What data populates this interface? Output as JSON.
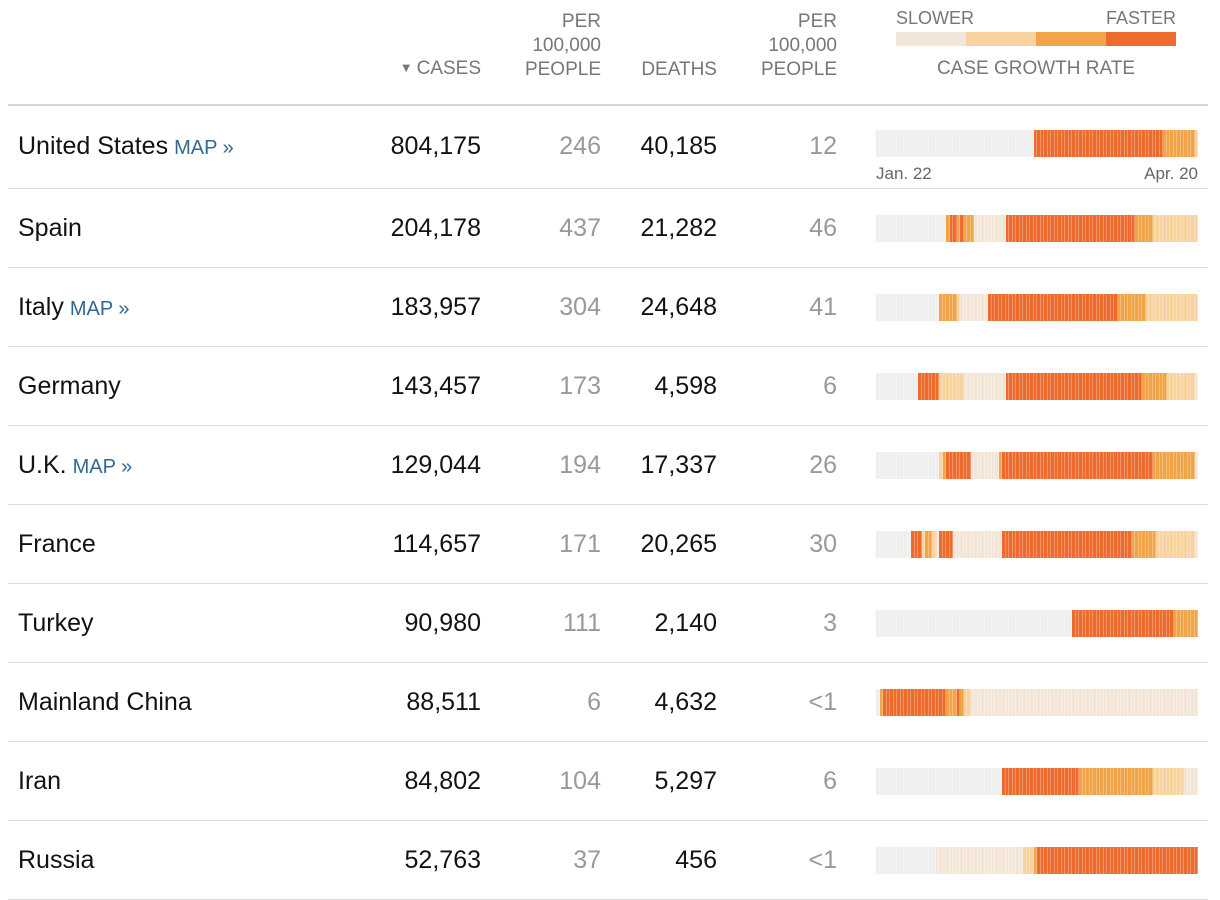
{
  "header": {
    "cases_sort_icon": "triangle-down-icon",
    "cases_sort_glyph": "▼",
    "cases_label": "CASES",
    "per100k_cases": [
      "PER",
      "100,000",
      "PEOPLE"
    ],
    "deaths_label": "DEATHS",
    "per100k_deaths": [
      "PER",
      "100,000",
      "PEOPLE"
    ]
  },
  "legend": {
    "slower_label": "SLOWER",
    "faster_label": "FASTER",
    "caption": "CASE GROWTH RATE",
    "colors": [
      "#f3e6d8",
      "#f8d3a0",
      "#f2a449",
      "#ec6b2d"
    ]
  },
  "colors": {
    "none": "#efefef",
    "level1": "#f3e6d8",
    "level2": "#f8d3a0",
    "level3": "#f2a449",
    "level4": "#ec6b2d",
    "link": "#326891",
    "muted": "#999999"
  },
  "sparkline_dates": {
    "start": "Jan. 22",
    "end": "Apr. 20"
  },
  "rows": [
    {
      "country": "United States",
      "map_link": "MAP »",
      "cases": "804,175",
      "cases_per_100k": "246",
      "deaths": "40,185",
      "deaths_per_100k": "12",
      "growth": "00000000000000000000000000000000000000000000044444444444444444444444444444444444443333333332"
    },
    {
      "country": "Spain",
      "map_link": "",
      "cases": "204,178",
      "cases_per_100k": "437",
      "deaths": "21,282",
      "deaths_per_100k": "46",
      "growth": "00000000000000000000344343331111111114444444444444444444444444444444444444333332222222222222"
    },
    {
      "country": "Italy",
      "map_link": "MAP »",
      "cases": "183,957",
      "cases_per_100k": "304",
      "deaths": "24,648",
      "deaths_per_100k": "41",
      "growth": "00000000000000000033333211111111444444444444444444444444444444444444433333333222222222222222"
    },
    {
      "country": "Germany",
      "map_link": "",
      "cases": "143,457",
      "cases_per_100k": "173",
      "deaths": "4,598",
      "deaths_per_100k": "6",
      "growth": "00000000000044444422222221111111111114444444444444444444444444444444444444443333333222222221"
    },
    {
      "country": "U.K.",
      "map_link": "MAP »",
      "cases": "129,044",
      "cases_per_100k": "194",
      "deaths": "17,337",
      "deaths_per_100k": "26",
      "growth": "00000000000000000023444444411111111344444444444444444444444444444444444444444443333333333331"
    },
    {
      "country": "France",
      "map_link": "",
      "cases": "114,657",
      "cases_per_100k": "171",
      "deaths": "20,265",
      "deaths_per_100k": "30",
      "growth": "00000000004442332144441111111111111144444444444444444444444444444444444443333333222222222221"
    },
    {
      "country": "Turkey",
      "map_link": "",
      "cases": "90,980",
      "cases_per_100k": "111",
      "deaths": "2,140",
      "deaths_per_100k": "3",
      "growth": "00000000000000000000000000000000000000000000000000000000444444444444444444444444444443333333"
    },
    {
      "country": "Mainland China",
      "map_link": "",
      "cases": "88,511",
      "cases_per_100k": "6",
      "deaths": "4,632",
      "deaths_per_100k": "<1",
      "growth": "03444444444444444444333432211111111111111111111111111111111111111111111111111111111111111111"
    },
    {
      "country": "Iran",
      "map_link": "",
      "cases": "84,802",
      "cases_per_100k": "104",
      "deaths": "5,297",
      "deaths_per_100k": "6",
      "growth": "00000000000000000000000000000000000044444444444444444444443333333333333333333332222222221111"
    },
    {
      "country": "Russia",
      "map_link": "",
      "cases": "52,763",
      "cases_per_100k": "37",
      "deaths": "456",
      "deaths_per_100k": "<1",
      "growth": "00000000000000000111111111111111111111111122234444444444444444444444444444444444444444444444"
    }
  ]
}
